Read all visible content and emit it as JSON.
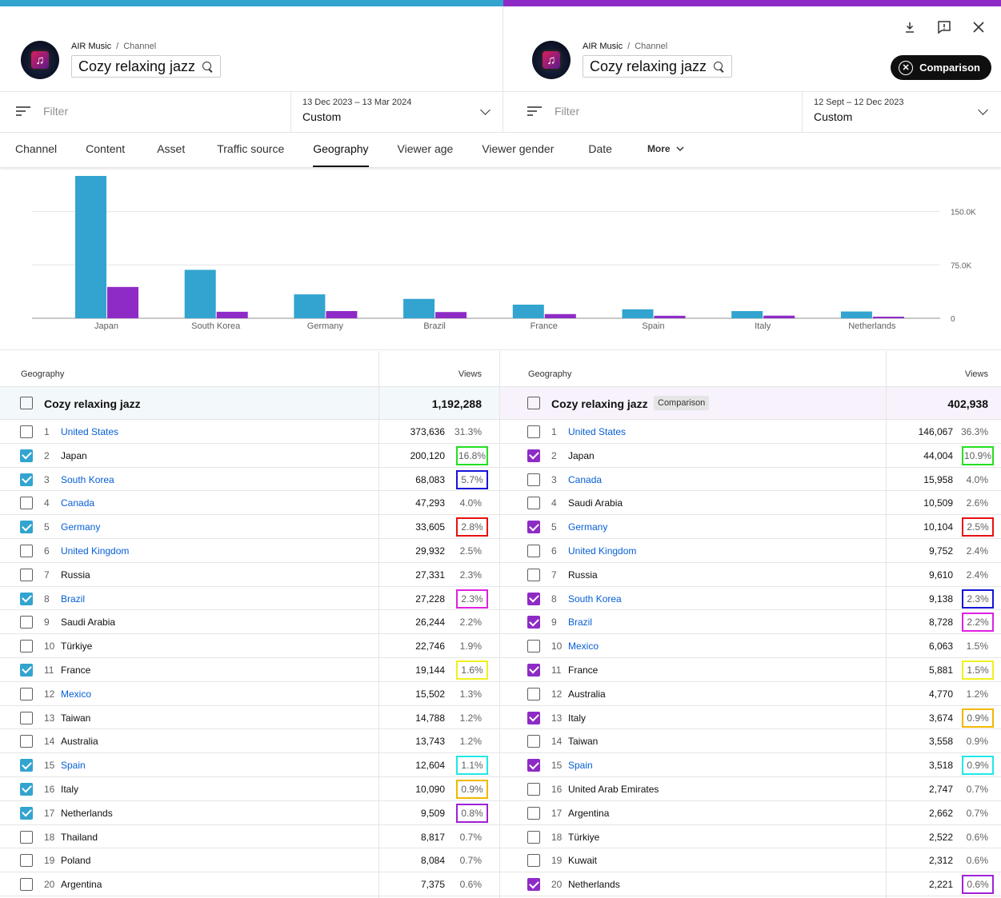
{
  "left": {
    "breadcrumb": [
      "AIR Music",
      "Channel"
    ],
    "channel": "Cozy relaxing jazz",
    "filter_placeholder": "Filter",
    "date_range": "13 Dec 2023 – 13 Mar 2024",
    "date_mode": "Custom",
    "table": {
      "col_geo": "Geography",
      "col_views": "Views",
      "total_label": "Cozy relaxing jazz",
      "total": "1,192,288",
      "rows": [
        {
          "rank": "1",
          "country": "United States",
          "link": true,
          "checked": false,
          "views": "373,636",
          "pct": "31.3%",
          "box": ""
        },
        {
          "rank": "2",
          "country": "Japan",
          "link": false,
          "checked": true,
          "views": "200,120",
          "pct": "16.8%",
          "box": "#22e022"
        },
        {
          "rank": "3",
          "country": "South Korea",
          "link": true,
          "checked": true,
          "views": "68,083",
          "pct": "5.7%",
          "box": "#1515d6"
        },
        {
          "rank": "4",
          "country": "Canada",
          "link": true,
          "checked": false,
          "views": "47,293",
          "pct": "4.0%",
          "box": ""
        },
        {
          "rank": "5",
          "country": "Germany",
          "link": true,
          "checked": true,
          "views": "33,605",
          "pct": "2.8%",
          "box": "#e81010"
        },
        {
          "rank": "6",
          "country": "United Kingdom",
          "link": true,
          "checked": false,
          "views": "29,932",
          "pct": "2.5%",
          "box": ""
        },
        {
          "rank": "7",
          "country": "Russia",
          "link": false,
          "checked": false,
          "views": "27,331",
          "pct": "2.3%",
          "box": ""
        },
        {
          "rank": "8",
          "country": "Brazil",
          "link": true,
          "checked": true,
          "views": "27,228",
          "pct": "2.3%",
          "box": "#e020e0"
        },
        {
          "rank": "9",
          "country": "Saudi Arabia",
          "link": false,
          "checked": false,
          "views": "26,244",
          "pct": "2.2%",
          "box": ""
        },
        {
          "rank": "10",
          "country": "Türkiye",
          "link": false,
          "checked": false,
          "views": "22,746",
          "pct": "1.9%",
          "box": ""
        },
        {
          "rank": "11",
          "country": "France",
          "link": false,
          "checked": true,
          "views": "19,144",
          "pct": "1.6%",
          "box": "#f0f020"
        },
        {
          "rank": "12",
          "country": "Mexico",
          "link": true,
          "checked": false,
          "views": "15,502",
          "pct": "1.3%",
          "box": ""
        },
        {
          "rank": "13",
          "country": "Taiwan",
          "link": false,
          "checked": false,
          "views": "14,788",
          "pct": "1.2%",
          "box": ""
        },
        {
          "rank": "14",
          "country": "Australia",
          "link": false,
          "checked": false,
          "views": "13,743",
          "pct": "1.2%",
          "box": ""
        },
        {
          "rank": "15",
          "country": "Spain",
          "link": true,
          "checked": true,
          "views": "12,604",
          "pct": "1.1%",
          "box": "#20e8e8"
        },
        {
          "rank": "16",
          "country": "Italy",
          "link": false,
          "checked": true,
          "views": "10,090",
          "pct": "0.9%",
          "box": "#f0b800"
        },
        {
          "rank": "17",
          "country": "Netherlands",
          "link": false,
          "checked": true,
          "views": "9,509",
          "pct": "0.8%",
          "box": "#a020d8"
        },
        {
          "rank": "18",
          "country": "Thailand",
          "link": false,
          "checked": false,
          "views": "8,817",
          "pct": "0.7%",
          "box": ""
        },
        {
          "rank": "19",
          "country": "Poland",
          "link": false,
          "checked": false,
          "views": "8,084",
          "pct": "0.7%",
          "box": ""
        },
        {
          "rank": "20",
          "country": "Argentina",
          "link": false,
          "checked": false,
          "views": "7,375",
          "pct": "0.6%",
          "box": ""
        }
      ]
    }
  },
  "right": {
    "breadcrumb": [
      "AIR Music",
      "Channel"
    ],
    "channel": "Cozy relaxing jazz",
    "filter_placeholder": "Filter",
    "date_range": "12 Sept – 12 Dec 2023",
    "date_mode": "Custom",
    "comparison_button": "Comparison",
    "table": {
      "col_geo": "Geography",
      "col_views": "Views",
      "total_label": "Cozy relaxing jazz",
      "total_badge": "Comparison",
      "total": "402,938",
      "rows": [
        {
          "rank": "1",
          "country": "United States",
          "link": true,
          "checked": false,
          "views": "146,067",
          "pct": "36.3%",
          "box": ""
        },
        {
          "rank": "2",
          "country": "Japan",
          "link": false,
          "checked": true,
          "views": "44,004",
          "pct": "10.9%",
          "box": "#22e022"
        },
        {
          "rank": "3",
          "country": "Canada",
          "link": true,
          "checked": false,
          "views": "15,958",
          "pct": "4.0%",
          "box": ""
        },
        {
          "rank": "4",
          "country": "Saudi Arabia",
          "link": false,
          "checked": false,
          "views": "10,509",
          "pct": "2.6%",
          "box": ""
        },
        {
          "rank": "5",
          "country": "Germany",
          "link": true,
          "checked": true,
          "views": "10,104",
          "pct": "2.5%",
          "box": "#e81010"
        },
        {
          "rank": "6",
          "country": "United Kingdom",
          "link": true,
          "checked": false,
          "views": "9,752",
          "pct": "2.4%",
          "box": ""
        },
        {
          "rank": "7",
          "country": "Russia",
          "link": false,
          "checked": false,
          "views": "9,610",
          "pct": "2.4%",
          "box": ""
        },
        {
          "rank": "8",
          "country": "South Korea",
          "link": true,
          "checked": true,
          "views": "9,138",
          "pct": "2.3%",
          "box": "#1515d6"
        },
        {
          "rank": "9",
          "country": "Brazil",
          "link": true,
          "checked": true,
          "views": "8,728",
          "pct": "2.2%",
          "box": "#e020e0"
        },
        {
          "rank": "10",
          "country": "Mexico",
          "link": true,
          "checked": false,
          "views": "6,063",
          "pct": "1.5%",
          "box": ""
        },
        {
          "rank": "11",
          "country": "France",
          "link": false,
          "checked": true,
          "views": "5,881",
          "pct": "1.5%",
          "box": "#f0f020"
        },
        {
          "rank": "12",
          "country": "Australia",
          "link": false,
          "checked": false,
          "views": "4,770",
          "pct": "1.2%",
          "box": ""
        },
        {
          "rank": "13",
          "country": "Italy",
          "link": false,
          "checked": true,
          "views": "3,674",
          "pct": "0.9%",
          "box": "#f0b800"
        },
        {
          "rank": "14",
          "country": "Taiwan",
          "link": false,
          "checked": false,
          "views": "3,558",
          "pct": "0.9%",
          "box": ""
        },
        {
          "rank": "15",
          "country": "Spain",
          "link": true,
          "checked": true,
          "views": "3,518",
          "pct": "0.9%",
          "box": "#20e8e8"
        },
        {
          "rank": "16",
          "country": "United Arab Emirates",
          "link": false,
          "checked": false,
          "views": "2,747",
          "pct": "0.7%",
          "box": ""
        },
        {
          "rank": "17",
          "country": "Argentina",
          "link": false,
          "checked": false,
          "views": "2,662",
          "pct": "0.7%",
          "box": ""
        },
        {
          "rank": "18",
          "country": "Türkiye",
          "link": false,
          "checked": false,
          "views": "2,522",
          "pct": "0.6%",
          "box": ""
        },
        {
          "rank": "19",
          "country": "Kuwait",
          "link": false,
          "checked": false,
          "views": "2,312",
          "pct": "0.6%",
          "box": ""
        },
        {
          "rank": "20",
          "country": "Netherlands",
          "link": false,
          "checked": true,
          "views": "2,221",
          "pct": "0.6%",
          "box": "#a020d8"
        }
      ]
    }
  },
  "header_icons": [
    "download-icon",
    "feedback-icon",
    "close-icon"
  ],
  "tabs": [
    {
      "label": "Channel",
      "active": false
    },
    {
      "label": "Content",
      "active": false
    },
    {
      "label": "Asset",
      "active": false
    },
    {
      "label": "Traffic source",
      "active": false
    },
    {
      "label": "Geography",
      "active": true
    },
    {
      "label": "Viewer age",
      "active": false
    },
    {
      "label": "Viewer gender",
      "active": false
    },
    {
      "label": "Date",
      "active": false
    },
    {
      "label": "More",
      "active": false
    }
  ],
  "colors": {
    "primary_series": "#32a4cf",
    "comparison_series": "#8e2bc6",
    "link": "#065fd4"
  },
  "chart_data": {
    "type": "bar",
    "categories": [
      "Japan",
      "South Korea",
      "Germany",
      "Brazil",
      "France",
      "Spain",
      "Italy",
      "Netherlands"
    ],
    "series": [
      {
        "values": [
          200120,
          68083,
          33605,
          27228,
          19144,
          12604,
          10090,
          9509
        ],
        "color": "#32a4cf"
      },
      {
        "values": [
          44004,
          9138,
          10104,
          8728,
          5881,
          3518,
          3674,
          2221
        ],
        "color": "#8e2bc6"
      }
    ],
    "y_ticks": [
      "150.0K",
      "75.0K",
      "0"
    ],
    "ylim": [
      0,
      200120
    ],
    "grid": true
  }
}
